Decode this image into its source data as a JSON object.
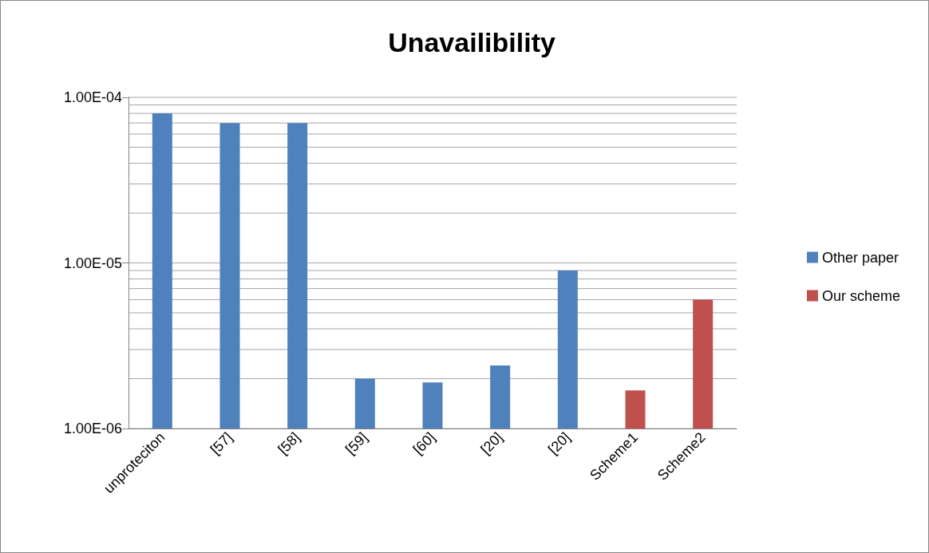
{
  "chart_data": {
    "type": "bar",
    "title": "Unavailibility",
    "categories": [
      "unproteciton",
      "[57]",
      "[58]",
      "[59]",
      "[60]",
      "[20]",
      "[20]",
      "Scheme1",
      "Scheme2"
    ],
    "series": [
      {
        "name": "Other paper",
        "color": "#4f81bd",
        "values": [
          8e-05,
          7e-05,
          7e-05,
          2e-06,
          1.9e-06,
          2.4e-06,
          9e-06,
          null,
          null
        ]
      },
      {
        "name": "Our scheme",
        "color": "#c0504d",
        "values": [
          null,
          null,
          null,
          null,
          null,
          null,
          null,
          1.7e-06,
          6e-06
        ]
      }
    ],
    "log": "y",
    "ylim": [
      1e-06,
      0.0001
    ],
    "yticks": [
      {
        "value": 1e-06,
        "label": "1.00E-06"
      },
      {
        "value": 2e-06,
        "label": null
      },
      {
        "value": 3e-06,
        "label": null
      },
      {
        "value": 4e-06,
        "label": null
      },
      {
        "value": 5e-06,
        "label": null
      },
      {
        "value": 6e-06,
        "label": null
      },
      {
        "value": 7e-06,
        "label": null
      },
      {
        "value": 8e-06,
        "label": null
      },
      {
        "value": 9e-06,
        "label": null
      },
      {
        "value": 1e-05,
        "label": "1.00E-05"
      },
      {
        "value": 2e-05,
        "label": null
      },
      {
        "value": 3e-05,
        "label": null
      },
      {
        "value": 4e-05,
        "label": null
      },
      {
        "value": 5e-05,
        "label": null
      },
      {
        "value": 6e-05,
        "label": null
      },
      {
        "value": 7e-05,
        "label": null
      },
      {
        "value": 8e-05,
        "label": null
      },
      {
        "value": 9e-05,
        "label": null
      },
      {
        "value": 0.0001,
        "label": "1.00E-04"
      }
    ],
    "grid": "y",
    "legend": "right"
  }
}
